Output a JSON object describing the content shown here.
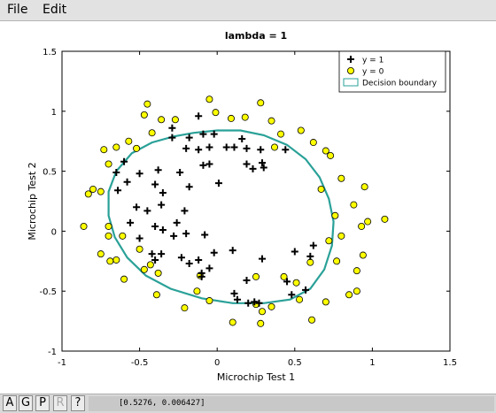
{
  "menu": {
    "file_label": "File",
    "edit_label": "Edit"
  },
  "toolbar": {
    "buttons": [
      "A",
      "G",
      "P",
      "R",
      "?"
    ]
  },
  "status": {
    "coordinates": "[0.5276, 0.006427]"
  },
  "colors": {
    "positive": "#000000",
    "negative_fill": "#ffff00",
    "boundary": "#2aa198"
  },
  "chart_data": {
    "type": "scatter",
    "title": "lambda = 1",
    "xlabel": "Microchip Test 1",
    "ylabel": "Microchip Test 2",
    "xlim": [
      -1,
      1.5
    ],
    "ylim": [
      -1,
      1.5
    ],
    "xticks": [
      "-1",
      "-0.5",
      "0",
      "0.5",
      "1",
      "1.5"
    ],
    "yticks": [
      "-1",
      "-0.5",
      "0",
      "0.5",
      "1",
      "1.5"
    ],
    "grid": false,
    "legend_position": "top-right",
    "series": [
      {
        "name": "y = 1",
        "marker": "plus",
        "points": [
          [
            -0.12,
            0.96
          ],
          [
            -0.29,
            0.86
          ],
          [
            -0.09,
            0.81
          ],
          [
            -0.02,
            0.81
          ],
          [
            -0.29,
            0.78
          ],
          [
            -0.18,
            0.78
          ],
          [
            0.16,
            0.77
          ],
          [
            0.11,
            0.7
          ],
          [
            -0.05,
            0.7
          ],
          [
            -0.2,
            0.69
          ],
          [
            -0.12,
            0.68
          ],
          [
            0.06,
            0.7
          ],
          [
            0.19,
            0.69
          ],
          [
            0.28,
            0.68
          ],
          [
            0.44,
            0.68
          ],
          [
            -0.6,
            0.58
          ],
          [
            -0.05,
            0.56
          ],
          [
            -0.09,
            0.55
          ],
          [
            0.3,
            0.53
          ],
          [
            0.19,
            0.56
          ],
          [
            0.29,
            0.57
          ],
          [
            0.23,
            0.52
          ],
          [
            -0.38,
            0.51
          ],
          [
            -0.65,
            0.49
          ],
          [
            -0.24,
            0.49
          ],
          [
            -0.5,
            0.48
          ],
          [
            -0.58,
            0.41
          ],
          [
            -0.4,
            0.39
          ],
          [
            0.01,
            0.4
          ],
          [
            -0.18,
            0.37
          ],
          [
            -0.35,
            0.32
          ],
          [
            -0.64,
            0.34
          ],
          [
            -0.36,
            0.22
          ],
          [
            -0.52,
            0.2
          ],
          [
            -0.45,
            0.17
          ],
          [
            -0.21,
            0.17
          ],
          [
            -0.56,
            0.07
          ],
          [
            -0.26,
            0.07
          ],
          [
            -0.4,
            0.04
          ],
          [
            -0.35,
            0.01
          ],
          [
            -0.2,
            -0.02
          ],
          [
            -0.08,
            -0.03
          ],
          [
            -0.28,
            -0.04
          ],
          [
            -0.5,
            -0.06
          ],
          [
            -0.42,
            -0.19
          ],
          [
            -0.36,
            -0.19
          ],
          [
            0.1,
            -0.16
          ],
          [
            -0.02,
            -0.18
          ],
          [
            0.6,
            -0.21
          ],
          [
            0.62,
            -0.12
          ],
          [
            0.5,
            -0.17
          ],
          [
            -0.23,
            -0.22
          ],
          [
            -0.4,
            -0.24
          ],
          [
            -0.12,
            -0.24
          ],
          [
            0.29,
            -0.23
          ],
          [
            -0.05,
            -0.31
          ],
          [
            -0.1,
            -0.35
          ],
          [
            -0.18,
            -0.27
          ],
          [
            -0.1,
            -0.38
          ],
          [
            0.19,
            -0.41
          ],
          [
            0.45,
            -0.42
          ],
          [
            0.57,
            -0.49
          ],
          [
            0.11,
            -0.52
          ],
          [
            0.13,
            -0.57
          ],
          [
            0.48,
            -0.53
          ],
          [
            0.24,
            -0.59
          ],
          [
            0.2,
            -0.6
          ],
          [
            0.27,
            -0.6
          ]
        ]
      },
      {
        "name": "y = 0",
        "marker": "circle",
        "points": [
          [
            -0.05,
            1.1
          ],
          [
            -0.45,
            1.06
          ],
          [
            -0.01,
            0.99
          ],
          [
            -0.27,
            0.93
          ],
          [
            -0.47,
            0.97
          ],
          [
            -0.36,
            0.93
          ],
          [
            0.09,
            0.94
          ],
          [
            0.18,
            0.95
          ],
          [
            0.28,
            1.07
          ],
          [
            0.35,
            0.92
          ],
          [
            0.41,
            0.81
          ],
          [
            0.54,
            0.84
          ],
          [
            0.62,
            0.74
          ],
          [
            -0.42,
            0.82
          ],
          [
            -0.57,
            0.75
          ],
          [
            -0.65,
            0.7
          ],
          [
            -0.52,
            0.69
          ],
          [
            0.37,
            0.7
          ],
          [
            0.7,
            0.67
          ],
          [
            0.73,
            0.63
          ],
          [
            -0.73,
            0.68
          ],
          [
            -0.7,
            0.56
          ],
          [
            0.8,
            0.44
          ],
          [
            -0.8,
            0.35
          ],
          [
            0.67,
            0.35
          ],
          [
            -0.75,
            0.33
          ],
          [
            0.95,
            0.37
          ],
          [
            0.88,
            0.22
          ],
          [
            0.76,
            0.13
          ],
          [
            1.08,
            0.1
          ],
          [
            -0.7,
            0.04
          ],
          [
            0.97,
            0.08
          ],
          [
            0.93,
            0.04
          ],
          [
            -0.7,
            -0.04
          ],
          [
            0.8,
            -0.04
          ],
          [
            0.94,
            -0.2
          ],
          [
            0.77,
            -0.25
          ],
          [
            -0.61,
            -0.04
          ],
          [
            0.72,
            -0.08
          ],
          [
            -0.75,
            -0.19
          ],
          [
            -0.65,
            -0.24
          ],
          [
            -0.5,
            -0.15
          ],
          [
            -0.69,
            -0.25
          ],
          [
            -0.43,
            -0.28
          ],
          [
            0.6,
            -0.26
          ],
          [
            -0.47,
            -0.32
          ],
          [
            0.9,
            -0.33
          ],
          [
            -0.6,
            -0.4
          ],
          [
            0.51,
            -0.43
          ],
          [
            -0.38,
            -0.35
          ],
          [
            -0.11,
            -0.37
          ],
          [
            0.25,
            -0.38
          ],
          [
            0.43,
            -0.38
          ],
          [
            -0.13,
            -0.5
          ],
          [
            -0.39,
            -0.53
          ],
          [
            0.53,
            -0.57
          ],
          [
            0.7,
            -0.59
          ],
          [
            0.85,
            -0.53
          ],
          [
            -0.05,
            -0.58
          ],
          [
            0.9,
            -0.5
          ],
          [
            0.25,
            -0.61
          ],
          [
            0.29,
            -0.67
          ],
          [
            0.35,
            -0.63
          ],
          [
            -0.21,
            -0.64
          ],
          [
            0.61,
            -0.74
          ],
          [
            0.1,
            -0.76
          ],
          [
            0.28,
            -0.77
          ],
          [
            -0.83,
            0.31
          ],
          [
            -0.86,
            0.04
          ]
        ]
      }
    ],
    "decision_boundary": {
      "name": "Decision boundary",
      "points": [
        [
          -0.15,
          0.82
        ],
        [
          0,
          0.84
        ],
        [
          0.15,
          0.84
        ],
        [
          0.3,
          0.8
        ],
        [
          0.45,
          0.72
        ],
        [
          0.57,
          0.6
        ],
        [
          0.66,
          0.45
        ],
        [
          0.72,
          0.27
        ],
        [
          0.75,
          0.08
        ],
        [
          0.74,
          -0.12
        ],
        [
          0.69,
          -0.32
        ],
        [
          0.6,
          -0.48
        ],
        [
          0.47,
          -0.57
        ],
        [
          0.3,
          -0.6
        ],
        [
          0.1,
          -0.6
        ],
        [
          -0.1,
          -0.56
        ],
        [
          -0.3,
          -0.48
        ],
        [
          -0.46,
          -0.37
        ],
        [
          -0.58,
          -0.22
        ],
        [
          -0.66,
          -0.05
        ],
        [
          -0.7,
          0.13
        ],
        [
          -0.7,
          0.33
        ],
        [
          -0.65,
          0.5
        ],
        [
          -0.55,
          0.65
        ],
        [
          -0.42,
          0.74
        ],
        [
          -0.28,
          0.79
        ]
      ]
    }
  }
}
